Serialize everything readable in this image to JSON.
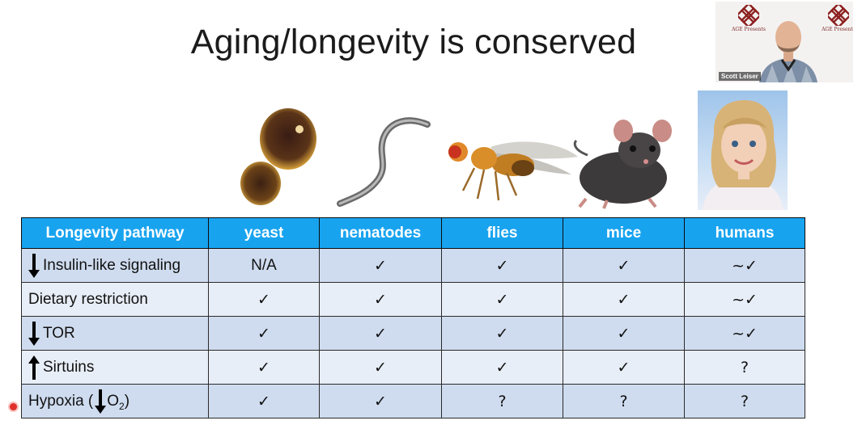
{
  "slide": {
    "title": "Aging/longevity is conserved"
  },
  "video_tile": {
    "speaker_name": "Scott Leiser",
    "logo_text": "AGE Presents"
  },
  "table": {
    "headers": [
      "Longevity pathway",
      "yeast",
      "nematodes",
      "flies",
      "mice",
      "humans"
    ],
    "rows": [
      {
        "label": "Insulin-like signaling",
        "arrow": "down",
        "cells": [
          "N/A",
          "✓",
          "✓",
          "✓",
          "~✓"
        ]
      },
      {
        "label": "Dietary restriction",
        "arrow": "",
        "cells": [
          "✓",
          "✓",
          "✓",
          "✓",
          "~✓"
        ]
      },
      {
        "label": "TOR",
        "arrow": "down",
        "cells": [
          "✓",
          "✓",
          "✓",
          "✓",
          "~✓"
        ]
      },
      {
        "label": "Sirtuins",
        "arrow": "up",
        "cells": [
          "✓",
          "✓",
          "✓",
          "✓",
          "?"
        ]
      },
      {
        "label_prefix": "Hypoxia (",
        "label_o": "O",
        "label_sub": "2",
        "label_suffix": ")",
        "cells": [
          "✓",
          "✓",
          "?",
          "?",
          "?"
        ]
      }
    ]
  },
  "colors": {
    "header_bg": "#18a3ef",
    "row_odd": "#cfdcef",
    "row_even": "#e8eef7",
    "recording": "#e0302b"
  }
}
